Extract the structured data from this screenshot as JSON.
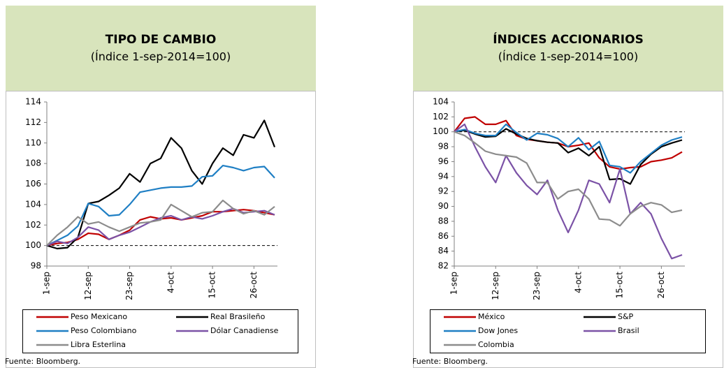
{
  "chart_data": [
    {
      "type": "line",
      "title": "TIPO DE CAMBIO",
      "subtitle": "(Índice 1-sep-2014=100)",
      "categories": [
        "1-sep",
        null,
        null,
        null,
        "12-sep",
        null,
        null,
        null,
        "23-sep",
        null,
        null,
        null,
        "4-oct",
        null,
        null,
        null,
        "15-oct",
        null,
        null,
        null,
        "26-oct",
        null,
        null
      ],
      "series": [
        {
          "name": "Peso Mexicano",
          "color": "#c00000",
          "values": [
            100,
            100.2,
            100.3,
            100.6,
            101.2,
            101.1,
            100.6,
            101.0,
            101.5,
            102.5,
            102.8,
            102.6,
            102.7,
            102.5,
            102.7,
            102.9,
            103.3,
            103.3,
            103.4,
            103.5,
            103.4,
            103.2,
            103.0
          ]
        },
        {
          "name": "Real Brasileño",
          "color": "#000000",
          "values": [
            100,
            99.7,
            99.8,
            100.8,
            104.1,
            104.3,
            104.9,
            105.6,
            107.0,
            106.2,
            108.0,
            108.5,
            110.5,
            109.5,
            107.3,
            106.0,
            108.0,
            109.5,
            108.8,
            110.8,
            110.5,
            112.2,
            109.6
          ]
        },
        {
          "name": "Peso Colombiano",
          "color": "#1f7fc4",
          "values": [
            100,
            100.5,
            101.0,
            101.9,
            104.1,
            103.8,
            102.9,
            103.0,
            104.0,
            105.2,
            105.4,
            105.6,
            105.7,
            105.7,
            105.8,
            106.7,
            106.8,
            107.8,
            107.6,
            107.3,
            107.6,
            107.7,
            106.6
          ]
        },
        {
          "name": "Dólar Canadiense",
          "color": "#7b52a6",
          "values": [
            100,
            100.4,
            100.2,
            100.8,
            101.8,
            101.5,
            100.6,
            101.0,
            101.3,
            101.8,
            102.3,
            102.7,
            102.9,
            102.5,
            102.8,
            102.6,
            102.9,
            103.3,
            103.6,
            103.2,
            103.3,
            103.4,
            103.0
          ]
        },
        {
          "name": "Libra Esterlina",
          "color": "#8c8c8c",
          "values": [
            100,
            101.0,
            101.8,
            102.8,
            102.1,
            102.3,
            101.8,
            101.4,
            101.8,
            102.2,
            102.3,
            102.5,
            104.0,
            103.4,
            102.8,
            103.2,
            103.3,
            104.4,
            103.6,
            103.1,
            103.4,
            103.0,
            103.8
          ]
        }
      ],
      "ylim": [
        98,
        114
      ],
      "yticks": [
        98,
        100,
        102,
        104,
        106,
        108,
        110,
        112,
        114
      ],
      "reference_line": 100,
      "legend": "bottom",
      "source": "Fuente: Bloomberg."
    },
    {
      "type": "line",
      "title": "ÍNDICES ACCIONARIOS",
      "subtitle": "(Índice 1-sep-2014=100)",
      "categories": [
        "1-sep",
        null,
        null,
        null,
        "12-sep",
        null,
        null,
        null,
        "23-sep",
        null,
        null,
        null,
        "4-oct",
        null,
        null,
        null,
        "15-oct",
        null,
        null,
        null,
        "26-oct",
        null,
        null
      ],
      "series": [
        {
          "name": "México",
          "color": "#c00000",
          "values": [
            100,
            101.8,
            102.0,
            101.0,
            101.0,
            101.5,
            99.5,
            99.0,
            98.8,
            98.6,
            98.5,
            98.0,
            98.2,
            98.5,
            96.5,
            95.3,
            95.0,
            95.2,
            95.3,
            96.0,
            96.2,
            96.5,
            97.3
          ]
        },
        {
          "name": "S&P",
          "color": "#000000",
          "values": [
            100,
            100.2,
            99.7,
            99.3,
            99.4,
            100.4,
            99.7,
            99.1,
            98.8,
            98.6,
            98.5,
            97.2,
            97.8,
            96.8,
            98.0,
            93.6,
            93.7,
            93.0,
            95.6,
            97.0,
            98.0,
            98.5,
            98.9
          ]
        },
        {
          "name": "Dow Jones",
          "color": "#1f7fc4",
          "values": [
            100,
            100.3,
            99.8,
            99.5,
            99.5,
            101.0,
            99.9,
            98.9,
            99.8,
            99.6,
            99.1,
            98.0,
            99.2,
            97.6,
            98.7,
            95.5,
            95.3,
            94.5,
            96.0,
            97.1,
            98.2,
            98.9,
            99.3
          ]
        },
        {
          "name": "Brasil",
          "color": "#7b52a6",
          "values": [
            100,
            101.0,
            98.0,
            95.3,
            93.2,
            96.8,
            94.5,
            92.8,
            91.6,
            93.5,
            89.5,
            86.5,
            89.5,
            93.5,
            93.0,
            90.5,
            95.0,
            89.0,
            90.5,
            89.0,
            85.7,
            83.0,
            83.5
          ]
        },
        {
          "name": "Colombia",
          "color": "#8c8c8c",
          "values": [
            100,
            99.5,
            98.5,
            97.4,
            97.0,
            96.8,
            96.6,
            95.8,
            93.2,
            93.2,
            91.0,
            92.0,
            92.3,
            91.0,
            88.3,
            88.2,
            87.4,
            89.0,
            90.0,
            90.5,
            90.2,
            89.2,
            89.5
          ]
        }
      ],
      "ylim": [
        82,
        104
      ],
      "yticks": [
        82,
        84,
        86,
        88,
        90,
        92,
        94,
        96,
        98,
        100,
        102,
        104
      ],
      "reference_line": 100,
      "legend": "bottom",
      "source": "Fuente: Bloomberg."
    }
  ]
}
